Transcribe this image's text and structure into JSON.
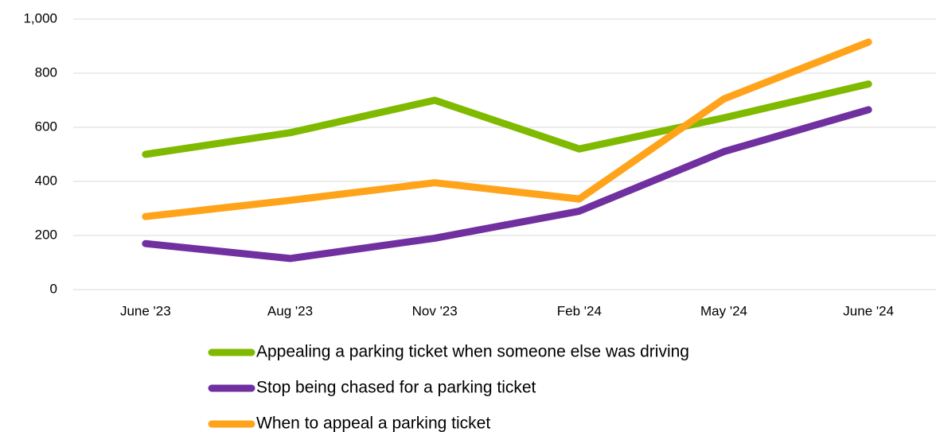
{
  "chart_data": {
    "type": "line",
    "categories": [
      "June '23",
      "Aug '23",
      "Nov '23",
      "Feb '24",
      "May '24",
      "June '24"
    ],
    "series": [
      {
        "name": "Appealing a parking ticket when someone else was driving",
        "color": "#7fba00",
        "values": [
          500,
          580,
          700,
          520,
          635,
          760
        ]
      },
      {
        "name": "Stop being chased for a parking ticket",
        "color": "#7030a0",
        "values": [
          170,
          115,
          190,
          290,
          510,
          665
        ]
      },
      {
        "name": "When to appeal a parking ticket",
        "color": "#ffa31a",
        "values": [
          270,
          330,
          395,
          335,
          705,
          915
        ]
      }
    ],
    "ylim": [
      0,
      1000
    ],
    "yticks": [
      0,
      200,
      400,
      600,
      800,
      {
        "value": 1000,
        "label": "1,000"
      }
    ],
    "grid": true,
    "legend": "bottom"
  }
}
